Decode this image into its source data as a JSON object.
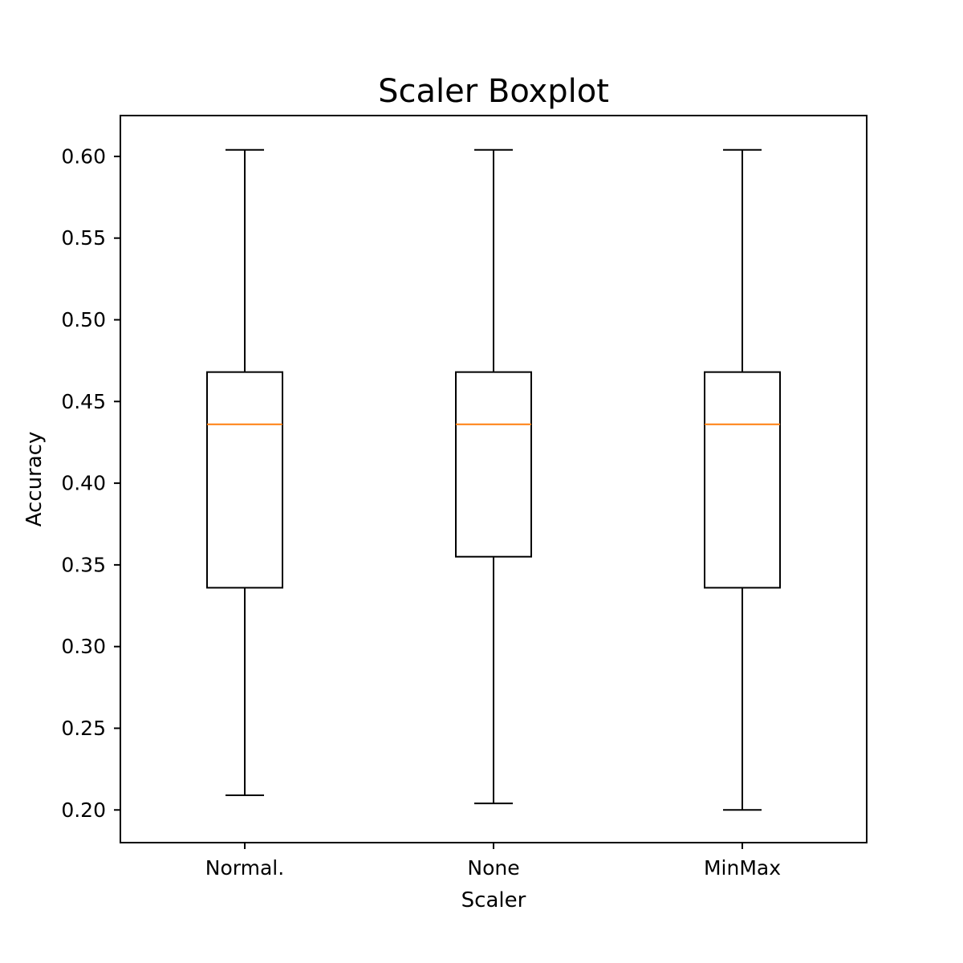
{
  "chart_data": {
    "type": "boxplot",
    "title": "Scaler Boxplot",
    "xlabel": "Scaler",
    "ylabel": "Accuracy",
    "categories": [
      "Normal.",
      "None",
      "MinMax"
    ],
    "boxes": [
      {
        "category": "Normal.",
        "whisker_low": 0.209,
        "q1": 0.336,
        "median": 0.436,
        "q3": 0.468,
        "whisker_high": 0.604
      },
      {
        "category": "None",
        "whisker_low": 0.204,
        "q1": 0.355,
        "median": 0.436,
        "q3": 0.468,
        "whisker_high": 0.604
      },
      {
        "category": "MinMax",
        "whisker_low": 0.2,
        "q1": 0.336,
        "median": 0.436,
        "q3": 0.468,
        "whisker_high": 0.604
      }
    ],
    "ylim": [
      0.18,
      0.625
    ],
    "yticks": [
      0.2,
      0.25,
      0.3,
      0.35,
      0.4,
      0.45,
      0.5,
      0.55,
      0.6
    ],
    "ytick_labels": [
      "0.20",
      "0.25",
      "0.30",
      "0.35",
      "0.40",
      "0.45",
      "0.50",
      "0.55",
      "0.60"
    ],
    "grid": false,
    "colors": {
      "box": "#000000",
      "median": "#ff7f0e",
      "whisker": "#000000",
      "background": "#ffffff"
    }
  }
}
